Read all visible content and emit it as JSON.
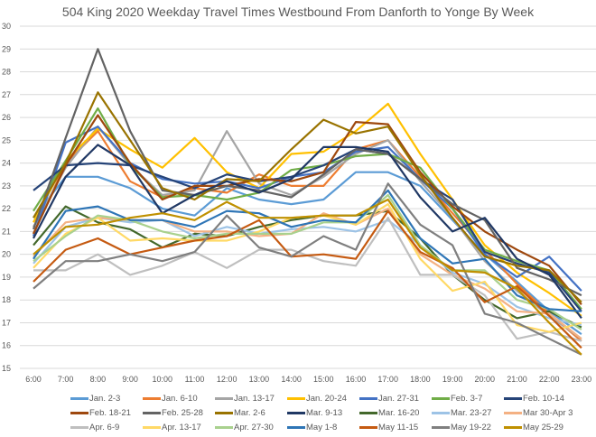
{
  "chart_data": {
    "type": "line",
    "title": "504 King 2020 Weekday Travel Times Westbound From Danforth to Yonge By Week",
    "xlabel": "",
    "ylabel": "",
    "ylim": [
      15,
      30
    ],
    "yticks": [
      "15",
      "16",
      "17",
      "18",
      "19",
      "20",
      "21",
      "22",
      "23",
      "24",
      "25",
      "26",
      "27",
      "28",
      "29",
      "30"
    ],
    "grid": true,
    "legend_position": "bottom",
    "categories": [
      "6:00",
      "7:00",
      "8:00",
      "9:00",
      "10:00",
      "11:00",
      "12:00",
      "13:00",
      "14:00",
      "15:00",
      "16:00",
      "17:00",
      "18:00",
      "19:00",
      "20:00",
      "21:00",
      "22:00",
      "23:00"
    ],
    "series": [
      {
        "name": "Jan. 2-3",
        "color": "#5B9BD5",
        "values": [
          21.6,
          23.4,
          23.4,
          22.9,
          22.0,
          21.7,
          22.9,
          22.4,
          22.2,
          22.4,
          23.6,
          23.6,
          23.0,
          21.5,
          20.0,
          18.8,
          17.5,
          16.5
        ]
      },
      {
        "name": "Jan. 6-10",
        "color": "#ED7D31",
        "values": [
          20.9,
          24.0,
          25.4,
          23.2,
          22.5,
          22.9,
          22.7,
          23.5,
          23.0,
          23.0,
          24.6,
          25.0,
          23.4,
          21.8,
          20.2,
          18.7,
          17.4,
          16.2
        ]
      },
      {
        "name": "Jan. 13-17",
        "color": "#A5A5A5",
        "values": [
          21.2,
          23.8,
          25.6,
          23.9,
          22.6,
          22.8,
          25.4,
          23.1,
          22.6,
          23.4,
          24.4,
          25.0,
          23.2,
          21.6,
          19.7,
          18.4,
          17.3,
          16.3
        ]
      },
      {
        "name": "Jan. 20-24",
        "color": "#FFC000",
        "values": [
          21.4,
          24.1,
          25.5,
          24.6,
          23.8,
          25.1,
          23.6,
          22.9,
          24.4,
          24.5,
          25.4,
          26.6,
          24.4,
          22.4,
          20.4,
          19.2,
          18.3,
          17.3
        ]
      },
      {
        "name": "Jan. 27-31",
        "color": "#4472C4",
        "values": [
          20.8,
          24.9,
          25.6,
          24.0,
          23.3,
          23.1,
          23.2,
          22.9,
          23.4,
          23.6,
          24.5,
          24.7,
          23.3,
          22.0,
          20.0,
          19.0,
          19.9,
          18.4
        ]
      },
      {
        "name": "Feb. 3-7",
        "color": "#70AD47",
        "values": [
          21.9,
          24.1,
          26.4,
          23.9,
          22.5,
          22.6,
          22.4,
          22.7,
          23.7,
          23.9,
          24.3,
          24.4,
          23.8,
          22.0,
          20.2,
          19.7,
          19.3,
          17.6
        ]
      },
      {
        "name": "Feb. 10-14",
        "color": "#264478",
        "values": [
          22.8,
          23.9,
          24.0,
          23.9,
          23.4,
          22.9,
          23.5,
          23.2,
          23.4,
          23.9,
          24.6,
          24.4,
          23.3,
          22.4,
          20.1,
          19.6,
          19.2,
          17.5
        ]
      },
      {
        "name": "Feb. 18-21",
        "color": "#9E480E",
        "values": [
          20.9,
          23.9,
          26.1,
          24.0,
          22.4,
          23.0,
          23.0,
          23.3,
          23.2,
          23.6,
          25.8,
          25.7,
          23.6,
          22.1,
          21.0,
          20.2,
          19.5,
          17.8
        ]
      },
      {
        "name": "Feb. 25-28",
        "color": "#636363",
        "values": [
          21.1,
          25.1,
          29.0,
          25.4,
          22.8,
          22.6,
          23.0,
          22.8,
          22.5,
          23.5,
          24.6,
          24.4,
          23.3,
          22.2,
          21.5,
          19.4,
          18.9,
          18.2
        ]
      },
      {
        "name": "Mar. 2-6",
        "color": "#997300",
        "values": [
          21.6,
          24.0,
          27.1,
          25.0,
          22.9,
          22.4,
          23.3,
          23.2,
          24.6,
          25.9,
          25.3,
          25.6,
          23.5,
          21.6,
          19.9,
          19.5,
          19.3,
          17.9
        ]
      },
      {
        "name": "Mar. 9-13",
        "color": "#203864",
        "values": [
          20.7,
          23.4,
          24.8,
          23.9,
          21.8,
          22.6,
          23.2,
          22.7,
          23.3,
          24.7,
          24.7,
          24.5,
          22.5,
          21.0,
          21.6,
          19.8,
          19.1,
          17.2
        ]
      },
      {
        "name": "Mar. 16-20",
        "color": "#43682B",
        "values": [
          20.4,
          22.1,
          21.4,
          21.1,
          20.3,
          20.9,
          20.8,
          21.2,
          21.5,
          21.7,
          21.7,
          21.9,
          20.7,
          19.1,
          18.0,
          17.2,
          17.5,
          16.8
        ]
      },
      {
        "name": "Mar. 23-27",
        "color": "#9DC3E6",
        "values": [
          19.6,
          21.2,
          21.6,
          21.4,
          21.5,
          20.8,
          21.2,
          20.9,
          21.1,
          21.2,
          21.0,
          21.5,
          20.4,
          19.2,
          18.7,
          17.7,
          17.2,
          16.9
        ]
      },
      {
        "name": "Mar 30-Apr 3",
        "color": "#F4B183",
        "values": [
          19.9,
          21.4,
          21.6,
          21.5,
          21.5,
          21.0,
          21.0,
          20.8,
          20.9,
          21.8,
          21.3,
          22.0,
          20.0,
          19.1,
          18.5,
          17.5,
          17.4,
          16.3
        ]
      },
      {
        "name": "Apr. 6-9",
        "color": "#BFBFBF",
        "values": [
          19.3,
          19.3,
          20.0,
          19.1,
          19.5,
          20.1,
          19.4,
          20.2,
          20.2,
          19.7,
          19.5,
          21.6,
          19.1,
          19.1,
          18.2,
          16.3,
          16.6,
          16.2
        ]
      },
      {
        "name": "Apr. 13-17",
        "color": "#FFD966",
        "values": [
          19.4,
          20.9,
          21.6,
          20.6,
          20.7,
          20.6,
          20.6,
          21.0,
          21.6,
          21.7,
          21.3,
          22.2,
          19.8,
          18.4,
          18.8,
          16.9,
          16.6,
          17.0
        ]
      },
      {
        "name": "Apr. 27-30",
        "color": "#A9D18E",
        "values": [
          19.7,
          20.8,
          21.7,
          21.5,
          21.0,
          20.7,
          20.9,
          20.9,
          20.9,
          21.4,
          21.4,
          22.6,
          20.4,
          19.3,
          19.3,
          18.0,
          17.6,
          16.7
        ]
      },
      {
        "name": "May 1-8",
        "color": "#2E75B6",
        "values": [
          19.8,
          21.9,
          22.1,
          21.5,
          21.5,
          21.2,
          21.9,
          21.8,
          21.2,
          21.5,
          21.4,
          22.8,
          20.7,
          19.6,
          19.8,
          18.2,
          17.6,
          17.5
        ]
      },
      {
        "name": "May 11-15",
        "color": "#C55A11",
        "values": [
          18.8,
          20.2,
          20.7,
          20.0,
          20.3,
          20.6,
          20.8,
          21.5,
          19.9,
          20.0,
          19.8,
          21.9,
          20.1,
          19.4,
          17.9,
          18.6,
          17.3,
          15.9
        ]
      },
      {
        "name": "May 19-22",
        "color": "#7F7F7F",
        "values": [
          18.5,
          19.7,
          19.7,
          20.0,
          19.7,
          20.1,
          21.7,
          20.3,
          19.9,
          20.8,
          20.2,
          23.1,
          21.3,
          20.4,
          17.4,
          17.0,
          16.3,
          15.6
        ]
      },
      {
        "name": "May 25-29",
        "color": "#BF9000",
        "values": [
          20.0,
          21.2,
          21.3,
          21.6,
          21.8,
          21.5,
          22.3,
          21.6,
          21.6,
          21.7,
          21.7,
          22.4,
          20.3,
          19.3,
          19.2,
          18.5,
          17.0,
          15.6
        ]
      }
    ]
  }
}
